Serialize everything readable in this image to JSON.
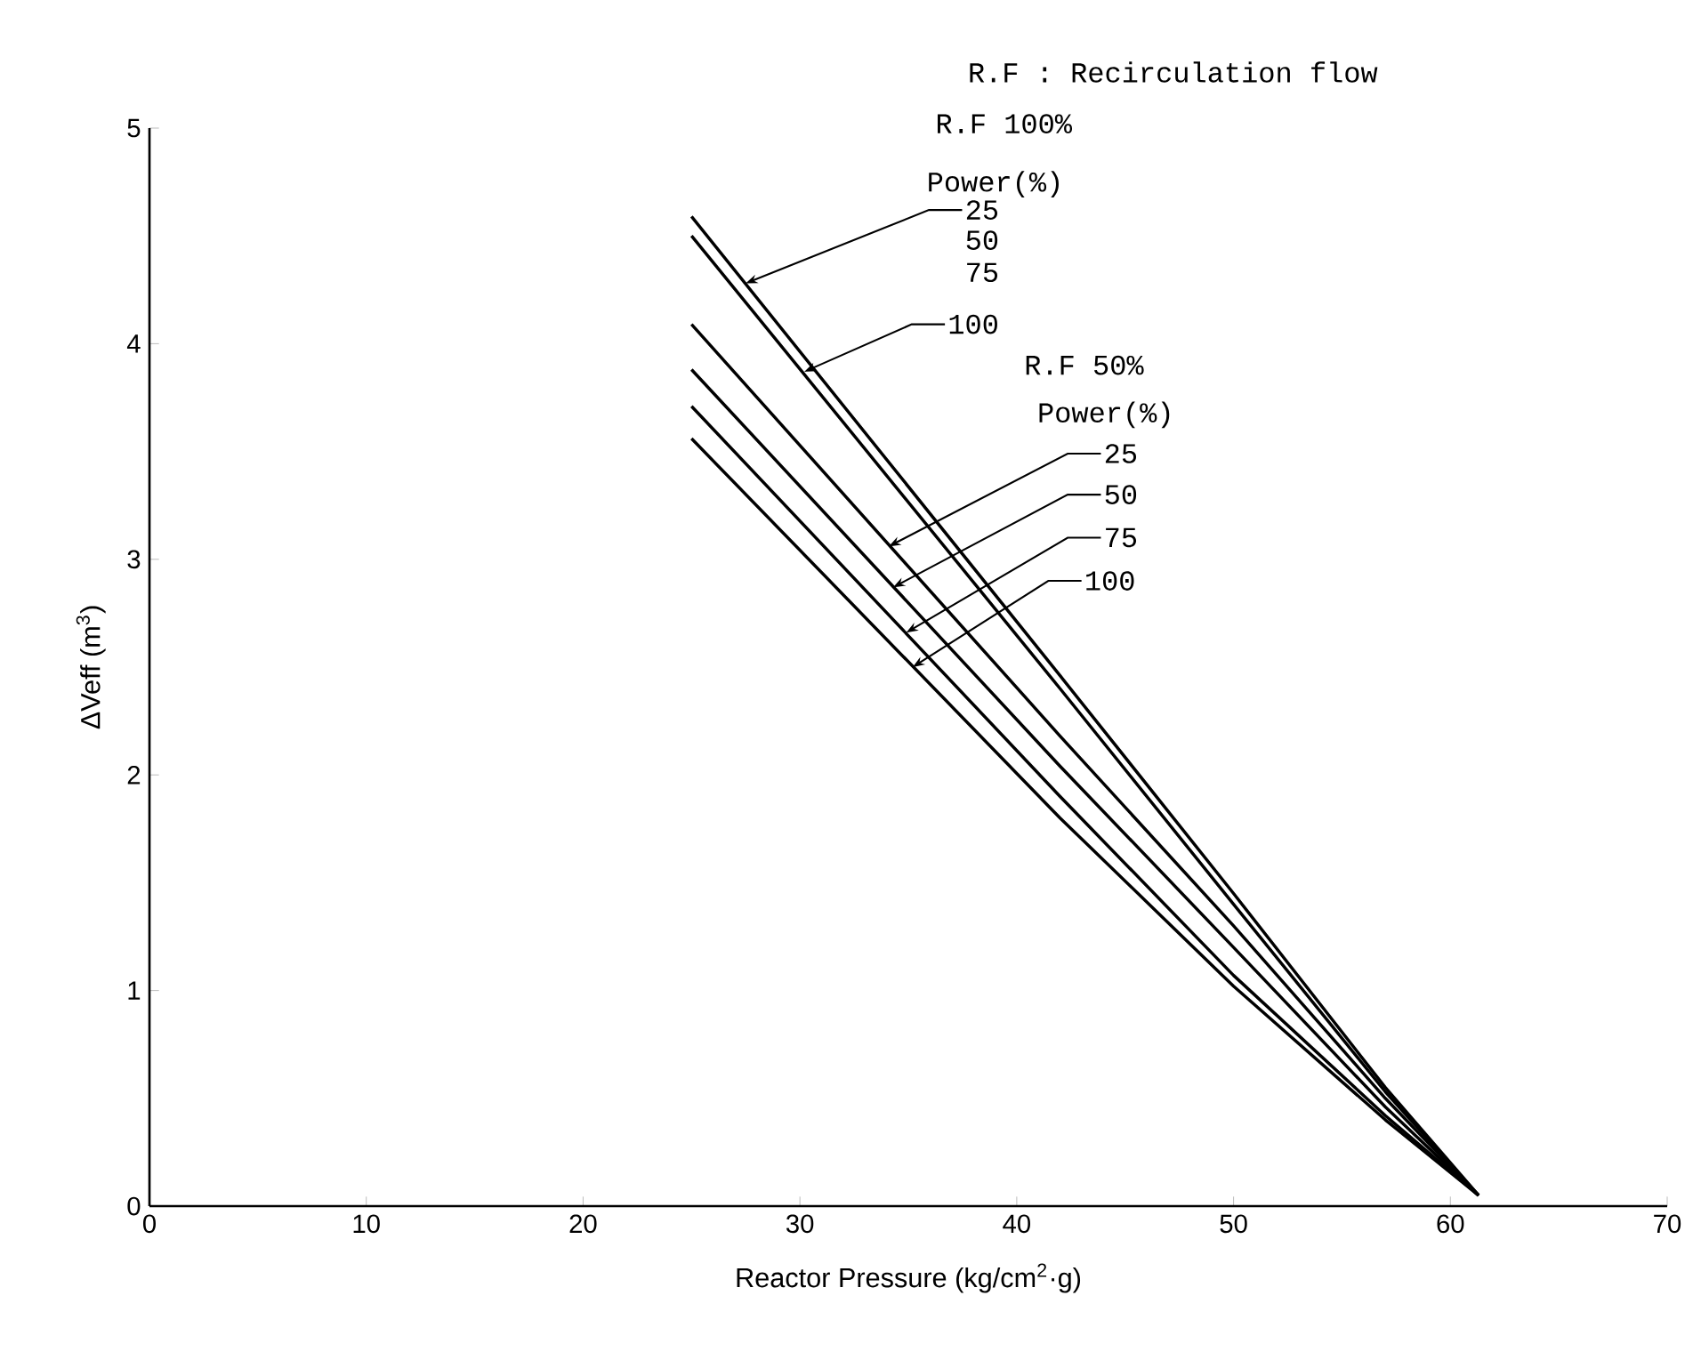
{
  "chart_data": {
    "type": "line",
    "xlabel": "Reactor Pressure (kg/cm$^{2}$·g)",
    "ylabel": "ΔVeff (m$^{3}$)",
    "xlim": [
      0,
      70
    ],
    "ylim": [
      0,
      5
    ],
    "xticks": [
      0,
      10,
      20,
      30,
      40,
      50,
      60,
      70
    ],
    "yticks": [
      0,
      1,
      2,
      3,
      4,
      5
    ],
    "x": [
      25,
      42,
      50,
      57,
      61.3
    ],
    "series": [
      {
        "color": "#000000",
        "values": [
          4.59,
          2.46,
          1.45,
          0.55,
          0.05
        ]
      },
      {
        "color": "#000000",
        "values": [
          4.5,
          2.4,
          1.4,
          0.53,
          0.05
        ]
      },
      {
        "color": "#000000",
        "values": [
          4.09,
          2.18,
          1.3,
          0.5,
          0.05
        ]
      },
      {
        "color": "#000000",
        "values": [
          3.88,
          2.04,
          1.2,
          0.46,
          0.05
        ]
      },
      {
        "color": "#000000",
        "values": [
          3.71,
          1.9,
          1.07,
          0.42,
          0.05
        ]
      },
      {
        "color": "#000000",
        "values": [
          3.56,
          1.8,
          1.02,
          0.4,
          0.05
        ]
      }
    ],
    "marker": "none",
    "line_style": "solid",
    "annotations": [
      "R.F : Recirculation flow",
      "R.F 100%",
      "Power(%)",
      {
        "text": "25",
        "x": 27.5,
        "y": 4.28
      },
      "50",
      "75",
      {
        "text": "100",
        "x": 30.2,
        "y": 3.87
      },
      "R.F 50%",
      "Power(%)",
      {
        "text": "25",
        "x": 34.1,
        "y": 3.06
      },
      {
        "text": "50",
        "x": 34.3,
        "y": 2.87
      },
      {
        "text": "75",
        "x": 34.9,
        "y": 2.66
      },
      {
        "text": "100",
        "x": 35.2,
        "y": 2.5
      }
    ]
  }
}
